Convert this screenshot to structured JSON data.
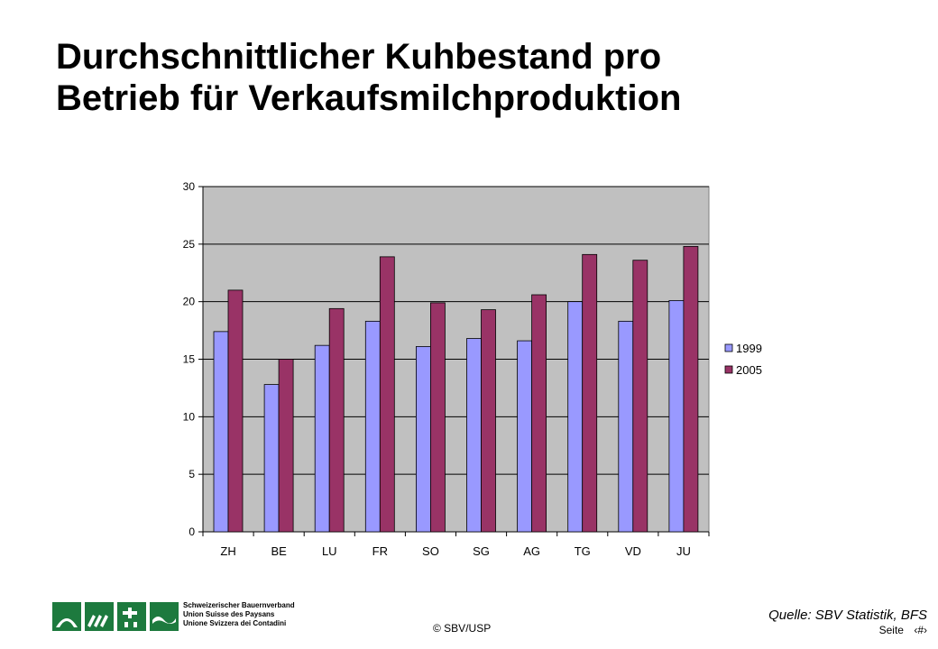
{
  "title_line1": "Durchschnittlicher Kuhbestand pro",
  "title_line2": "Betrieb für Verkaufsmilchproduktion",
  "source": "Quelle: SBV Statistik, BFS",
  "footer": {
    "copyright": "© SBV/USP",
    "page_label": "Seite",
    "page_number": "‹#›"
  },
  "organization": {
    "name_de": "Schweizerischer Bauernverband",
    "name_fr": "Union Suisse des Paysans",
    "name_it": "Unione Svizzera dei Contadini"
  },
  "colors": {
    "plot_background": "#c0c0c0",
    "logo": "#1d7a3e"
  },
  "chart_data": {
    "type": "bar",
    "categories": [
      "ZH",
      "BE",
      "LU",
      "FR",
      "SO",
      "SG",
      "AG",
      "TG",
      "VD",
      "JU"
    ],
    "series": [
      {
        "name": "1999",
        "color": "#9999ff",
        "values": [
          17.4,
          12.8,
          16.2,
          18.3,
          16.1,
          16.8,
          16.6,
          20.0,
          18.3,
          20.1
        ]
      },
      {
        "name": "2005",
        "color": "#993366",
        "values": [
          21.0,
          15.0,
          19.4,
          23.9,
          19.9,
          19.3,
          20.6,
          24.1,
          23.6,
          24.8
        ]
      }
    ],
    "y_ticks": [
      0,
      5,
      10,
      15,
      20,
      25,
      30
    ],
    "ylim": [
      0,
      30
    ],
    "grid": true,
    "legend_position": "right"
  }
}
